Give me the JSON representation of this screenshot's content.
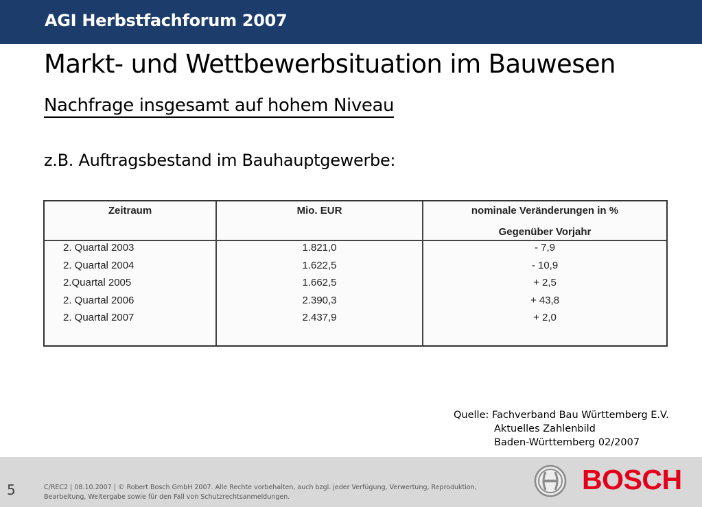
{
  "header": {
    "title": "AGI Herbstfachforum 2007"
  },
  "slide": {
    "title": "Markt- und Wettbewerbsituation im Bauwesen",
    "subtitle": "Nachfrage insgesamt auf hohem Niveau",
    "intro": "z.B. Auftragsbestand im Bauhauptgewerbe:"
  },
  "table": {
    "headers": {
      "period": "Zeitraum",
      "value": "Mio. EUR",
      "change_line1": "nominale Veränderungen in %",
      "change_line2": "Gegenüber Vorjahr"
    },
    "rows": [
      {
        "period": "2. Quartal 2003",
        "value": "1.821,0",
        "change": "- 7,9"
      },
      {
        "period": "2. Quartal 2004",
        "value": "1.622,5",
        "change": "- 10,9"
      },
      {
        "period": "2.Quartal 2005",
        "value": "1.662,5",
        "change": "+ 2,5"
      },
      {
        "period": "2. Quartal 2006",
        "value": "2.390,3",
        "change": "+ 43,8"
      },
      {
        "period": "2. Quartal 2007",
        "value": "2.437,9",
        "change": "+ 2,0"
      }
    ]
  },
  "source": {
    "line1": "Quelle: Fachverband Bau Württemberg E.V.",
    "line2": "Aktuelles Zahlenbild",
    "line3": "Baden-Württemberg 02/2007"
  },
  "footer": {
    "page_number": "5",
    "legal": "C/REC2 | 08.10.2007 | © Robert Bosch GmbH 2007. Alle Rechte vorbehalten, auch bzgl. jeder Verfügung, Verwertung, Reproduktion, Bearbeitung, Weitergabe sowie für den Fall von Schutzrechtsanmeldungen.",
    "brand": "BOSCH",
    "brand_color": "#e2001a",
    "header_color": "#1c3d6b"
  }
}
